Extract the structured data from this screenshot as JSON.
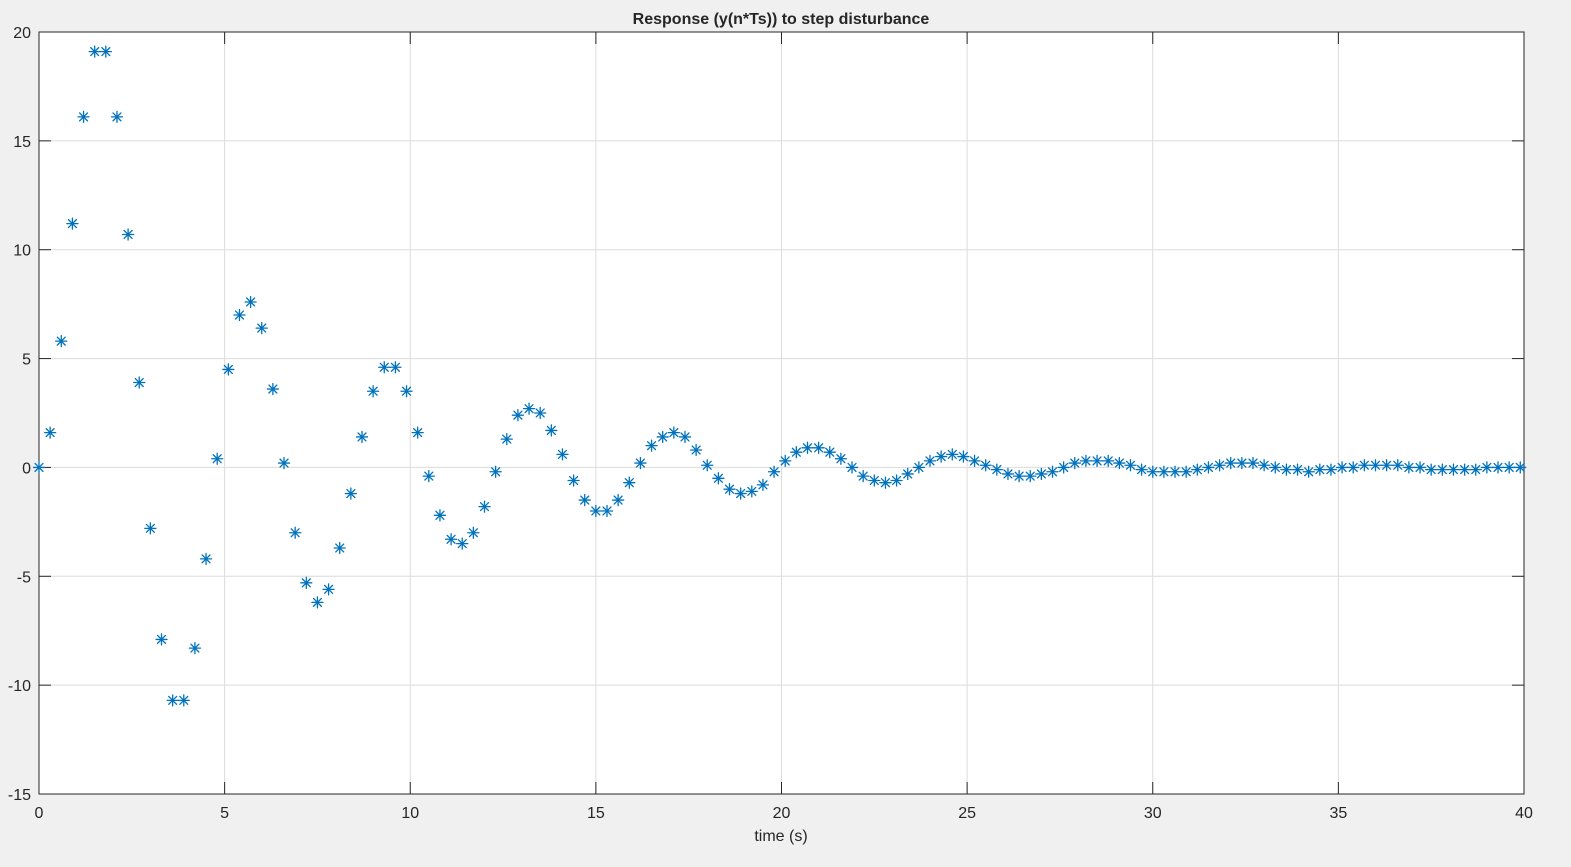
{
  "chart_data": {
    "type": "scatter",
    "title": "Response (y(n*Ts)) to step disturbance",
    "xlabel": "time (s)",
    "ylabel": "",
    "xlim": [
      0,
      40
    ],
    "ylim": [
      -15,
      20
    ],
    "xticks": [
      "0",
      "5",
      "10",
      "15",
      "20",
      "25",
      "30",
      "35",
      "40"
    ],
    "yticks": [
      "20",
      "15",
      "10",
      "5",
      "0",
      "-5",
      "-10",
      "-15"
    ],
    "grid": true,
    "marker": "asterisk",
    "color": "#0072BD",
    "x": [
      0,
      0.3,
      0.6,
      0.9,
      1.2,
      1.5,
      1.8,
      2.1,
      2.4,
      2.7,
      3.0,
      3.3,
      3.6,
      3.9,
      4.2,
      4.5,
      4.8,
      5.1,
      5.4,
      5.7,
      6.0,
      6.3,
      6.6,
      6.9,
      7.2,
      7.5,
      7.8,
      8.1,
      8.4,
      8.7,
      9.0,
      9.3,
      9.6,
      9.9,
      10.2,
      10.5,
      10.8,
      11.1,
      11.4,
      11.7,
      12.0,
      12.3,
      12.6,
      12.9,
      13.2,
      13.5,
      13.8,
      14.1,
      14.4,
      14.7,
      15.0,
      15.3,
      15.6,
      15.9,
      16.2,
      16.5,
      16.8,
      17.1,
      17.4,
      17.7,
      18.0,
      18.3,
      18.6,
      18.9,
      19.2,
      19.5,
      19.8,
      20.1,
      20.4,
      20.7,
      21.0,
      21.3,
      21.6,
      21.9,
      22.2,
      22.5,
      22.8,
      23.1,
      23.4,
      23.7,
      24.0,
      24.3,
      24.6,
      24.9,
      25.2,
      25.5,
      25.8,
      26.1,
      26.4,
      26.7,
      27.0,
      27.3,
      27.6,
      27.9,
      28.2,
      28.5,
      28.8,
      29.1,
      29.4,
      29.7,
      30.0,
      30.3,
      30.6,
      30.9,
      31.2,
      31.5,
      31.8,
      32.1,
      32.4,
      32.7,
      33.0,
      33.3,
      33.6,
      33.9,
      34.2,
      34.5,
      34.8,
      35.1,
      35.4,
      35.7,
      36.0,
      36.3,
      36.6,
      36.9,
      37.2,
      37.5,
      37.8,
      38.1,
      38.4,
      38.7,
      39.0,
      39.3,
      39.6,
      39.9
    ],
    "y": [
      0,
      1.6,
      5.8,
      11.2,
      16.1,
      19.1,
      19.1,
      16.1,
      10.7,
      3.9,
      -2.8,
      -7.9,
      -10.7,
      -10.7,
      -8.3,
      -4.2,
      0.4,
      4.5,
      7.0,
      7.6,
      6.4,
      3.6,
      0.2,
      -3.0,
      -5.3,
      -6.2,
      -5.6,
      -3.7,
      -1.2,
      1.4,
      3.5,
      4.6,
      4.6,
      3.5,
      1.6,
      -0.4,
      -2.2,
      -3.3,
      -3.5,
      -3.0,
      -1.8,
      -0.2,
      1.3,
      2.4,
      2.7,
      2.5,
      1.7,
      0.6,
      -0.6,
      -1.5,
      -2.0,
      -2.0,
      -1.5,
      -0.7,
      0.2,
      1.0,
      1.4,
      1.6,
      1.4,
      0.8,
      0.1,
      -0.5,
      -1.0,
      -1.2,
      -1.1,
      -0.8,
      -0.2,
      0.3,
      0.7,
      0.9,
      0.9,
      0.7,
      0.4,
      0.0,
      -0.4,
      -0.6,
      -0.7,
      -0.6,
      -0.3,
      0.0,
      0.3,
      0.5,
      0.6,
      0.5,
      0.3,
      0.1,
      -0.1,
      -0.3,
      -0.4,
      -0.4,
      -0.3,
      -0.2,
      0.0,
      0.2,
      0.3,
      0.3,
      0.3,
      0.2,
      0.1,
      -0.1,
      -0.2,
      -0.2,
      -0.2,
      -0.2,
      -0.1,
      0.0,
      0.1,
      0.2,
      0.2,
      0.2,
      0.1,
      0.0,
      -0.1,
      -0.1,
      -0.2,
      -0.1,
      -0.1,
      0.0,
      0.0,
      0.1,
      0.1,
      0.1,
      0.1,
      0.0,
      0.0,
      -0.1,
      -0.1,
      -0.1,
      -0.1,
      -0.1,
      0.0,
      0.0,
      0.0,
      0.0
    ]
  }
}
